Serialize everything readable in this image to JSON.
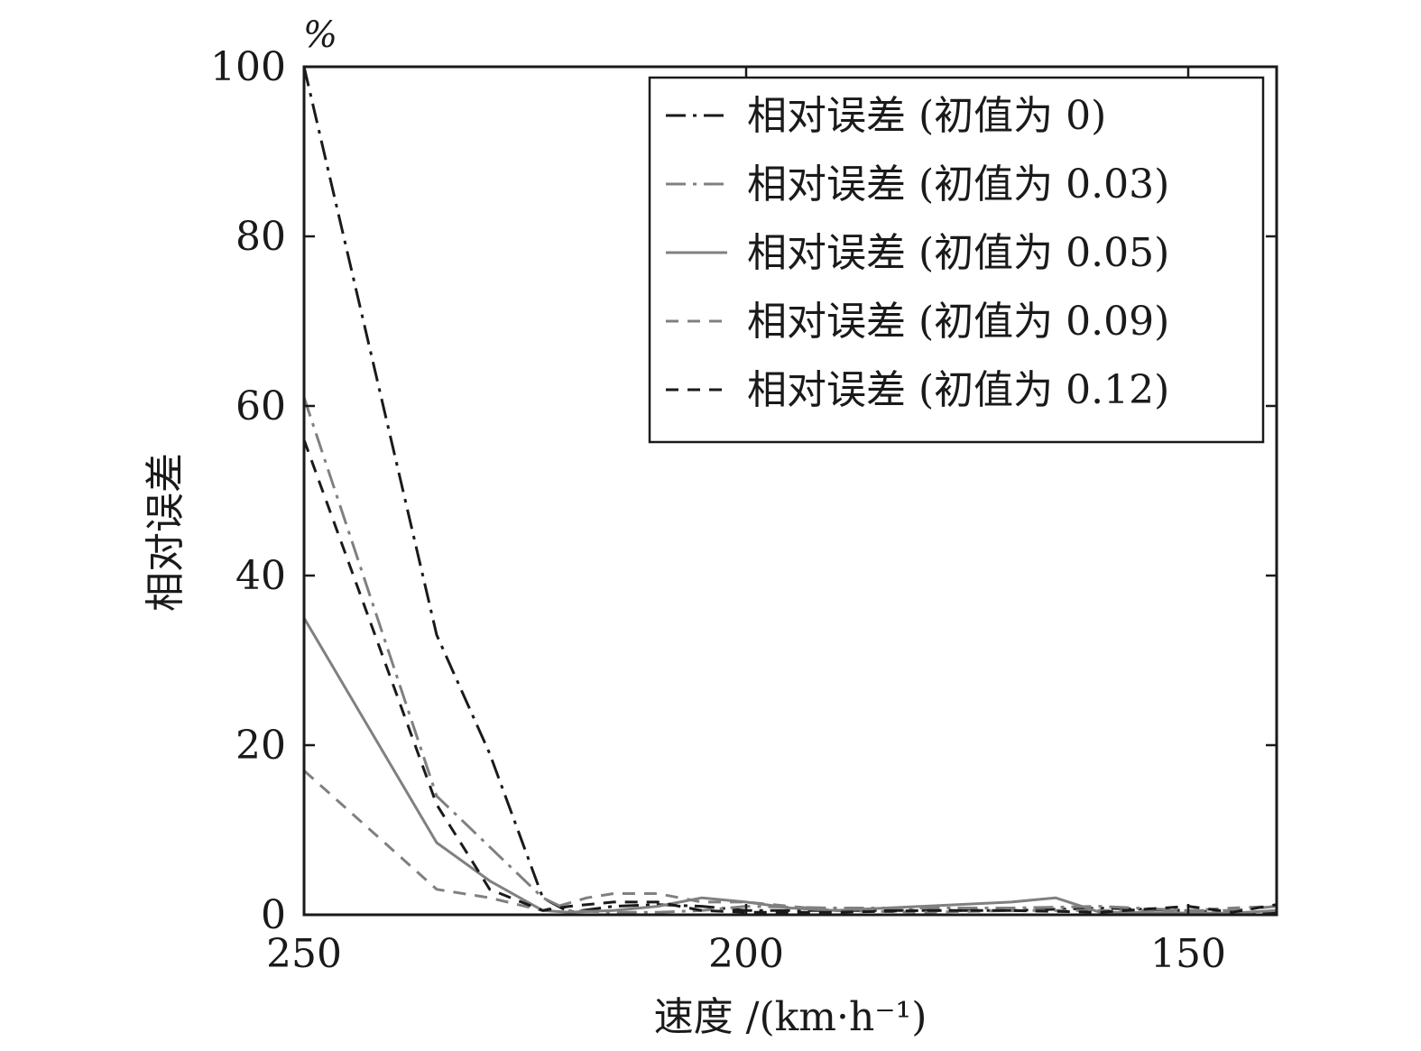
{
  "chart_data": {
    "type": "line",
    "unit_label": "%",
    "xlabel": "速度 /(km·h⁻¹)",
    "ylabel": "相对误差",
    "xlim": [
      250,
      140
    ],
    "ylim": [
      0,
      100
    ],
    "x_reversed": true,
    "xticks": [
      250,
      200,
      150
    ],
    "yticks": [
      0,
      20,
      40,
      60,
      80,
      100
    ],
    "grid": false,
    "legend_position": "top-right",
    "series": [
      {
        "name": "相对误差 (初值为 0)",
        "color": "#1a1a1a",
        "dash": "22,8,4,8",
        "x": [
          250,
          235,
          229,
          223,
          220,
          215,
          210,
          205,
          200,
          190,
          180,
          170,
          160,
          150,
          145,
          140
        ],
        "y": [
          100,
          33,
          19,
          2,
          0.3,
          1,
          1.2,
          1,
          0.5,
          0.5,
          0.5,
          0.5,
          0.8,
          0.5,
          0.2,
          0.3
        ]
      },
      {
        "name": "相对误差 (初值为 0.03)",
        "color": "#808080",
        "dash": "22,8,4,8",
        "x": [
          250,
          235,
          229,
          223,
          220,
          215,
          210,
          205,
          200,
          190,
          180,
          170,
          160,
          150,
          145,
          140
        ],
        "y": [
          61,
          14,
          8,
          2,
          0.5,
          0.3,
          0.3,
          0.5,
          1,
          0.8,
          0.8,
          0.8,
          1,
          0.5,
          0.5,
          1
        ]
      },
      {
        "name": "相对误差 (初值为 0.05)",
        "color": "#808080",
        "dash": "",
        "x": [
          250,
          235,
          229,
          223,
          220,
          215,
          210,
          205,
          200,
          195,
          190,
          180,
          170,
          165,
          160,
          150,
          145,
          140
        ],
        "y": [
          35,
          8.5,
          4,
          0.5,
          0.3,
          0.5,
          1,
          2,
          1.5,
          0.8,
          0.5,
          1,
          1.5,
          2,
          0.3,
          0.2,
          0.2,
          0.5
        ]
      },
      {
        "name": "相对误差 (初值为 0.09)",
        "color": "#808080",
        "dash": "14,10",
        "x": [
          250,
          235,
          229,
          223,
          218,
          215,
          210,
          205,
          200,
          190,
          180,
          170,
          160,
          150,
          145,
          140
        ],
        "y": [
          17,
          3,
          2,
          0.5,
          2,
          2.5,
          2.5,
          1.5,
          1.5,
          0.5,
          0.3,
          0.5,
          0.5,
          0.5,
          0.8,
          1
        ]
      },
      {
        "name": "相对误差 (初值为 0.12)",
        "color": "#1a1a1a",
        "dash": "14,10",
        "x": [
          250,
          235,
          229,
          223,
          220,
          215,
          210,
          205,
          200,
          190,
          180,
          170,
          160,
          150,
          145,
          140
        ],
        "y": [
          56,
          13,
          3,
          0.5,
          1,
          1.5,
          1.5,
          0.5,
          0.3,
          0.3,
          0.5,
          0.5,
          0.3,
          1,
          0.3,
          1.2
        ]
      }
    ]
  }
}
